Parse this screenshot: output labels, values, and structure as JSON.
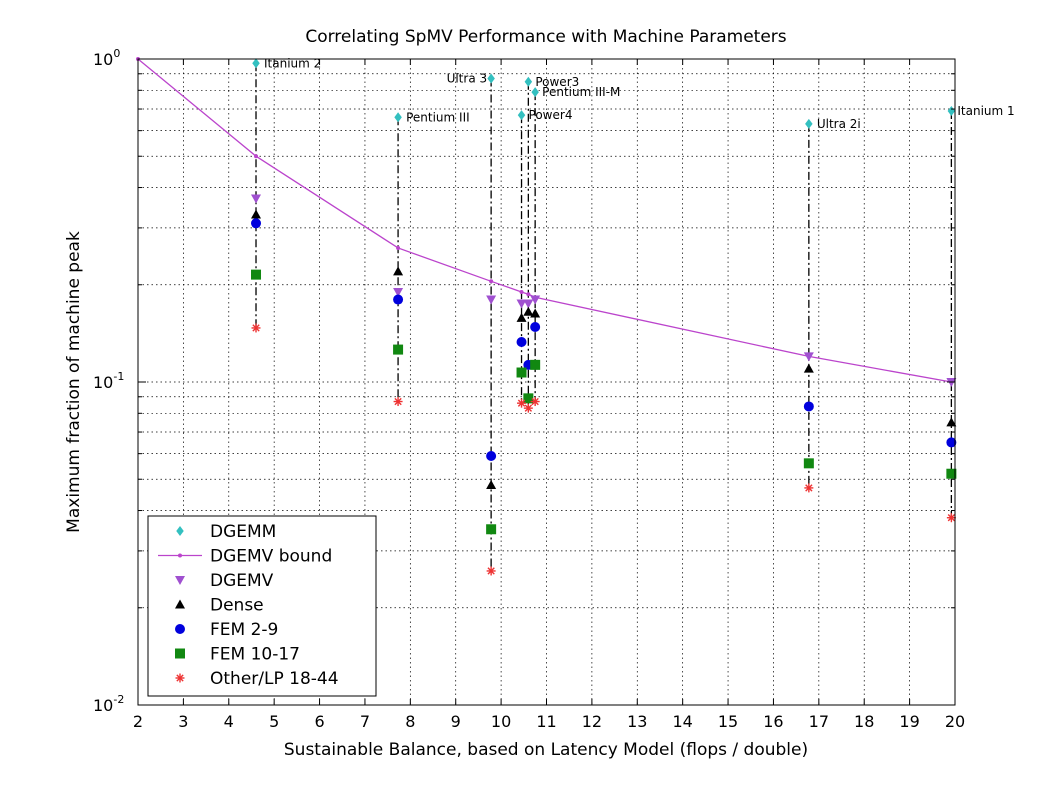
{
  "chart_data": {
    "type": "scatter",
    "title": "Correlating SpMV Performance with Machine Parameters",
    "xlabel": "Sustainable Balance, based on Latency Model (flops / double)",
    "ylabel": "Maximum fraction of machine peak",
    "xlim": [
      2,
      20
    ],
    "ylim": [
      0.01,
      1
    ],
    "yscale": "log",
    "grid": true,
    "legend_position": "bottom-left",
    "x_ticks": [
      "2",
      "3",
      "4",
      "5",
      "6",
      "7",
      "8",
      "9",
      "10",
      "11",
      "12",
      "13",
      "14",
      "15",
      "16",
      "17",
      "18",
      "19",
      "20"
    ],
    "y_ticks": [
      {
        "value": 1,
        "base": "10",
        "exp": "0"
      },
      {
        "value": 0.1,
        "base": "10",
        "exp": "-1"
      },
      {
        "value": 0.01,
        "base": "10",
        "exp": "-2"
      }
    ],
    "machines": [
      {
        "name": "Itanium 2",
        "x": 4.6
      },
      {
        "name": "Pentium III",
        "x": 7.73
      },
      {
        "name": "Ultra 3",
        "x": 9.78
      },
      {
        "name": "Power4",
        "x": 10.45
      },
      {
        "name": "Power3",
        "x": 10.6
      },
      {
        "name": "Pentium III-M",
        "x": 10.75
      },
      {
        "name": "Ultra 2i",
        "x": 16.78
      },
      {
        "name": "Itanium 1",
        "x": 19.92
      }
    ],
    "series": [
      {
        "name": "DGEMM",
        "marker": "diamond",
        "color": "#33c0c0",
        "x": [
          4.6,
          7.73,
          9.78,
          10.45,
          10.6,
          10.75,
          16.78,
          19.92
        ],
        "y": [
          0.97,
          0.66,
          0.87,
          0.67,
          0.85,
          0.79,
          0.63,
          0.69
        ]
      },
      {
        "name": "DGEMV bound",
        "marker": "line-dot",
        "color": "#bb44cc",
        "x": [
          2,
          4.6,
          7.73,
          9.78,
          10.45,
          10.6,
          10.75,
          16.78,
          19.92
        ],
        "y": [
          1.0,
          0.5,
          0.26,
          0.205,
          0.19,
          0.187,
          0.183,
          0.12,
          0.1
        ]
      },
      {
        "name": "DGEMV",
        "marker": "triangle-down",
        "color": "#a050d0",
        "x": [
          4.6,
          7.73,
          9.78,
          10.45,
          10.6,
          10.75,
          16.78,
          19.92
        ],
        "y": [
          0.37,
          0.19,
          0.18,
          0.175,
          0.175,
          0.18,
          0.12,
          0.1
        ]
      },
      {
        "name": "Dense",
        "marker": "triangle-up",
        "color": "#000000",
        "x": [
          4.6,
          7.73,
          9.78,
          10.45,
          10.6,
          10.75,
          16.78,
          19.92
        ],
        "y": [
          0.33,
          0.22,
          0.048,
          0.158,
          0.165,
          0.163,
          0.11,
          0.075
        ]
      },
      {
        "name": "FEM 2-9",
        "marker": "circle",
        "color": "#0000dd",
        "x": [
          4.6,
          7.73,
          9.78,
          10.45,
          10.6,
          10.75,
          16.78,
          19.92
        ],
        "y": [
          0.31,
          0.18,
          0.059,
          0.133,
          0.113,
          0.148,
          0.084,
          0.065
        ]
      },
      {
        "name": "FEM 10-17",
        "marker": "square",
        "color": "#118811",
        "x": [
          4.6,
          7.73,
          9.78,
          10.45,
          10.6,
          10.75,
          16.78,
          19.92
        ],
        "y": [
          0.215,
          0.126,
          0.035,
          0.107,
          0.089,
          0.113,
          0.056,
          0.052
        ]
      },
      {
        "name": "Other/LP 18-44",
        "marker": "star",
        "color": "#ee3333",
        "x": [
          4.6,
          7.73,
          9.78,
          10.45,
          10.6,
          10.75,
          16.78,
          19.92
        ],
        "y": [
          0.147,
          0.087,
          0.026,
          0.086,
          0.083,
          0.087,
          0.047,
          0.038
        ]
      }
    ]
  }
}
